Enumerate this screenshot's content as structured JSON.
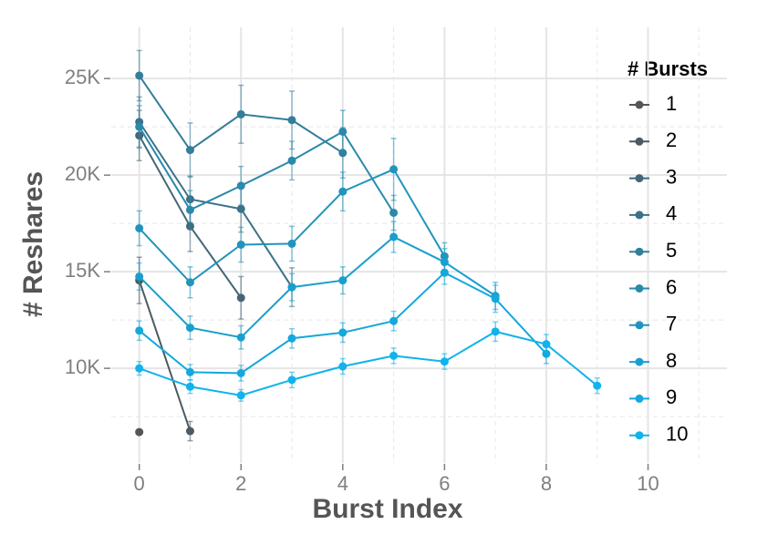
{
  "chart_data": {
    "type": "line",
    "x_label": "Burst Index",
    "y_label": "# Reshares",
    "legend_title": "# Bursts",
    "legend_position": "right",
    "grid": true,
    "xlim": [
      -0.55,
      11.55
    ],
    "ylim": [
      5100,
      27650
    ],
    "xticks": [
      0,
      2,
      4,
      6,
      8,
      10
    ],
    "minor_xticks": [
      1,
      3,
      5,
      7,
      9,
      11
    ],
    "yticks": [
      {
        "value": 10000,
        "label": "10K"
      },
      {
        "value": 15000,
        "label": "15K"
      },
      {
        "value": 20000,
        "label": "20K"
      },
      {
        "value": 25000,
        "label": "25K"
      }
    ],
    "minor_yticks": [
      7500,
      12500,
      17500,
      22500
    ],
    "series": [
      {
        "name": "1",
        "color": "#555555",
        "x": [
          0
        ],
        "values": [
          6700
        ],
        "errors": [
          0
        ]
      },
      {
        "name": "2",
        "color": "#4c5a63",
        "x": [
          0,
          1
        ],
        "values": [
          14550,
          6750
        ],
        "errors": [
          1200,
          500
        ]
      },
      {
        "name": "3",
        "color": "#446777",
        "x": [
          0,
          1,
          2
        ],
        "values": [
          22050,
          17350,
          13650
        ],
        "errors": [
          1300,
          1300,
          1100
        ]
      },
      {
        "name": "4",
        "color": "#3b7288",
        "x": [
          0,
          1,
          2,
          3
        ],
        "values": [
          22750,
          18750,
          18250,
          14200
        ],
        "errors": [
          1300,
          1200,
          1200,
          1000
        ]
      },
      {
        "name": "5",
        "color": "#337e9a",
        "x": [
          0,
          1,
          2,
          3,
          4
        ],
        "values": [
          25150,
          21300,
          23150,
          22850,
          21150
        ],
        "errors": [
          1300,
          1400,
          1500,
          1500,
          1300
        ]
      },
      {
        "name": "6",
        "color": "#2b89ab",
        "x": [
          0,
          1,
          2,
          3,
          4,
          5
        ],
        "values": [
          22500,
          18200,
          19450,
          20750,
          22250,
          18050
        ],
        "errors": [
          1100,
          1000,
          1000,
          1000,
          1100,
          900
        ]
      },
      {
        "name": "7",
        "color": "#2294bc",
        "x": [
          0,
          1,
          2,
          3,
          4,
          5,
          6
        ],
        "values": [
          17250,
          14450,
          16400,
          16450,
          19150,
          20300,
          15800
        ],
        "errors": [
          900,
          800,
          900,
          900,
          1000,
          1600,
          700
        ]
      },
      {
        "name": "8",
        "color": "#1a9fcc",
        "x": [
          0,
          1,
          2,
          3,
          4,
          5,
          6,
          7
        ],
        "values": [
          14750,
          12100,
          11600,
          14200,
          14550,
          16800,
          15500,
          13750
        ],
        "errors": [
          700,
          600,
          600,
          700,
          700,
          800,
          700,
          700
        ]
      },
      {
        "name": "9",
        "color": "#14a8dc",
        "x": [
          0,
          1,
          2,
          3,
          4,
          5,
          6,
          7,
          8
        ],
        "values": [
          11950,
          9800,
          9750,
          11550,
          11850,
          12450,
          14950,
          13600,
          10750
        ],
        "errors": [
          500,
          400,
          400,
          500,
          500,
          500,
          600,
          700,
          500
        ]
      },
      {
        "name": "10",
        "color": "#10b3eb",
        "x": [
          0,
          1,
          2,
          3,
          4,
          5,
          6,
          7,
          8,
          9
        ],
        "values": [
          10000,
          9050,
          8600,
          9400,
          10100,
          10650,
          10350,
          11900,
          11250,
          9100
        ],
        "errors": [
          350,
          350,
          300,
          400,
          400,
          400,
          400,
          500,
          500,
          400
        ]
      }
    ]
  }
}
